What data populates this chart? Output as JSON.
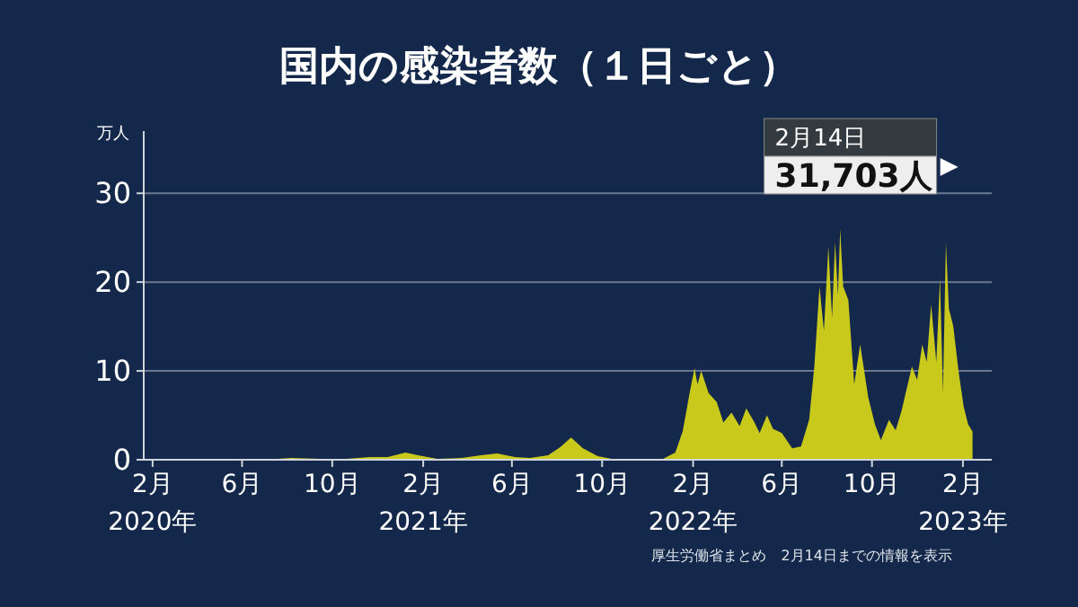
{
  "chart_data": {
    "type": "area",
    "title": "国内の感染者数（１日ごと）",
    "ylabel": "万人",
    "color": "#c9c91c",
    "x": [
      "2020-01-20",
      "2020-03-01",
      "2020-04-12",
      "2020-05-20",
      "2020-07-01",
      "2020-08-06",
      "2020-09-15",
      "2020-10-20",
      "2020-11-20",
      "2020-12-15",
      "2021-01-08",
      "2021-01-25",
      "2021-02-20",
      "2021-03-25",
      "2021-04-20",
      "2021-05-12",
      "2021-06-05",
      "2021-06-25",
      "2021-07-20",
      "2021-08-05",
      "2021-08-20",
      "2021-09-05",
      "2021-09-25",
      "2021-10-20",
      "2021-12-20",
      "2022-01-08",
      "2022-01-18",
      "2022-01-28",
      "2022-02-03",
      "2022-02-07",
      "2022-02-12",
      "2022-02-22",
      "2022-03-05",
      "2022-03-14",
      "2022-03-25",
      "2022-04-05",
      "2022-04-14",
      "2022-04-25",
      "2022-05-02",
      "2022-05-12",
      "2022-05-20",
      "2022-06-01",
      "2022-06-15",
      "2022-06-27",
      "2022-07-08",
      "2022-07-15",
      "2022-07-22",
      "2022-07-28",
      "2022-08-03",
      "2022-08-08",
      "2022-08-12",
      "2022-08-16",
      "2022-08-19",
      "2022-08-23",
      "2022-08-30",
      "2022-09-07",
      "2022-09-15",
      "2022-09-26",
      "2022-10-05",
      "2022-10-13",
      "2022-10-24",
      "2022-11-02",
      "2022-11-10",
      "2022-11-17",
      "2022-11-24",
      "2022-12-01",
      "2022-12-08",
      "2022-12-14",
      "2022-12-20",
      "2022-12-27",
      "2023-01-01",
      "2023-01-05",
      "2023-01-09",
      "2023-01-13",
      "2023-01-19",
      "2023-01-26",
      "2023-02-02",
      "2023-02-08",
      "2023-02-14"
    ],
    "values": [
      0,
      0,
      0.1,
      0,
      0,
      0.2,
      0.1,
      0.1,
      0.3,
      0.3,
      0.8,
      0.5,
      0.1,
      0.2,
      0.5,
      0.7,
      0.3,
      0.2,
      0.5,
      1.4,
      2.5,
      1.3,
      0.4,
      0,
      0,
      0.8,
      3.2,
      7.8,
      10.3,
      8.5,
      10,
      7.5,
      6.5,
      4.2,
      5.3,
      3.8,
      5.8,
      4.2,
      3,
      5,
      3.5,
      3,
      1.3,
      1.5,
      4.5,
      10.5,
      19.5,
      14.5,
      24,
      16,
      24.5,
      18.5,
      26,
      19.5,
      18,
      8.5,
      13,
      7,
      4,
      2.2,
      4.5,
      3.3,
      5.5,
      8,
      10.5,
      9,
      13,
      11,
      17.5,
      11,
      20.5,
      7.5,
      24.5,
      17,
      15,
      10,
      6,
      4,
      3.1703
    ],
    "xlim": [
      "2020-01-20",
      "2023-03-12"
    ],
    "xticks": [
      {
        "value": "2020-02",
        "label": "2月\n2020年"
      },
      {
        "value": "2020-06",
        "label": "6月"
      },
      {
        "value": "2020-10",
        "label": "10月"
      },
      {
        "value": "2021-02",
        "label": "2月\n2021年"
      },
      {
        "value": "2021-06",
        "label": "6月"
      },
      {
        "value": "2021-10",
        "label": "10月"
      },
      {
        "value": "2022-02",
        "label": "2月\n2022年"
      },
      {
        "value": "2022-06",
        "label": "6月"
      },
      {
        "value": "2022-10",
        "label": "10月"
      },
      {
        "value": "2023-02",
        "label": "2月\n2023年"
      }
    ],
    "ylim": [
      0,
      37
    ],
    "yticks": [
      0,
      10,
      20,
      30
    ],
    "grid": "y",
    "annotations": [
      "2月14日",
      "31,703人",
      "厚生労働省まとめ　2月14日までの情報を表示"
    ]
  }
}
